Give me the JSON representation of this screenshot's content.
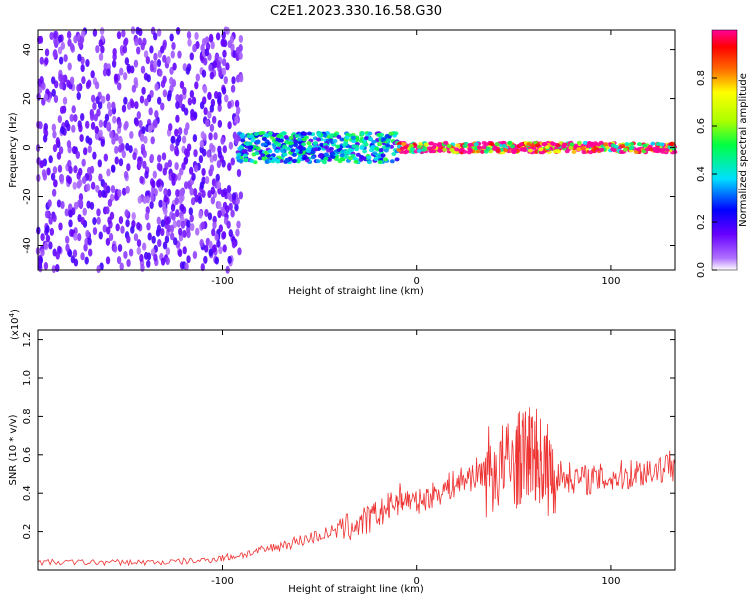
{
  "title": "C2E1.2023.330.16.58.G30",
  "chart_data": [
    {
      "type": "heatmap",
      "xlabel": "Height of straight line (km)",
      "ylabel": "Frequency (Hz)",
      "xlim": [
        -195,
        133
      ],
      "ylim": [
        -50,
        48
      ],
      "xticks": [
        -100,
        0,
        100
      ],
      "yticks": [
        -40,
        -20,
        0,
        20,
        40
      ],
      "colorbar": {
        "label": "Normalized spectral amplitude",
        "ticks": [
          "0.0",
          "0.2",
          "0.4",
          "0.6",
          "0.8"
        ],
        "range": [
          0,
          1
        ]
      },
      "description_regions": [
        {
          "x_from": -195,
          "x_to": -90,
          "freq_from": -50,
          "freq_to": 48,
          "amplitude": 0.12
        },
        {
          "x_from": -92,
          "x_to": -10,
          "freq_from": -6,
          "freq_to": 6,
          "amplitude": 0.35
        },
        {
          "x_from": -10,
          "x_to": 133,
          "freq_from": -2,
          "freq_to": 2,
          "amplitude": 0.9
        }
      ]
    },
    {
      "type": "line",
      "xlabel": "Height of straight line (km)",
      "ylabel": "SNR (10 * v/v)",
      "y_multiplier": "(x10",
      "y_multiplier_exp": "4",
      "xlim": [
        -195,
        133
      ],
      "ylim": [
        0,
        1.25
      ],
      "xticks": [
        -100,
        0,
        100
      ],
      "yticks": [
        0.2,
        0.4,
        0.6,
        0.8,
        1.0,
        1.2
      ],
      "series": [
        {
          "color": "#ee3333",
          "x": [
            -195,
            -170,
            -150,
            -130,
            -110,
            -95,
            -80,
            -65,
            -50,
            -35,
            -25,
            -15,
            -8,
            0,
            10,
            20,
            30,
            40,
            50,
            55,
            60,
            65,
            70,
            80,
            90,
            100,
            110,
            120,
            133
          ],
          "y": [
            0.04,
            0.04,
            0.04,
            0.04,
            0.05,
            0.07,
            0.1,
            0.14,
            0.18,
            0.22,
            0.26,
            0.32,
            0.38,
            0.35,
            0.4,
            0.45,
            0.5,
            0.52,
            0.55,
            0.6,
            0.62,
            0.55,
            0.5,
            0.48,
            0.47,
            0.48,
            0.5,
            0.52,
            0.55
          ]
        }
      ]
    }
  ]
}
